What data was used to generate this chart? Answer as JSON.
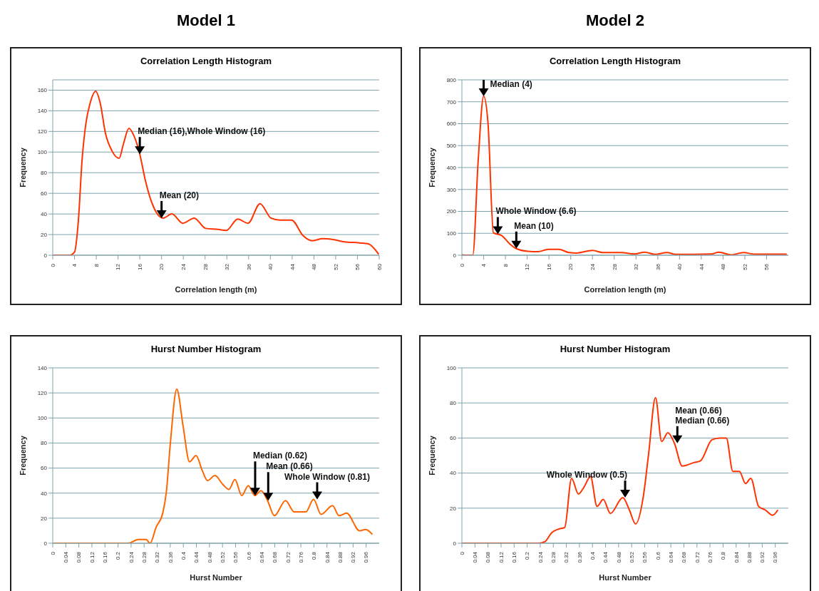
{
  "chart_data": [
    {
      "type": "line",
      "title": "Correlation Length Histogram",
      "xlabel": "Correlation length (m)",
      "ylabel": "Frequency",
      "xlim": [
        0,
        60
      ],
      "xticks": [
        0,
        4,
        8,
        12,
        16,
        20,
        24,
        28,
        32,
        36,
        40,
        44,
        48,
        52,
        56,
        60
      ],
      "ylim": [
        0,
        170
      ],
      "yticks": [
        0,
        20,
        40,
        60,
        80,
        100,
        120,
        140,
        160
      ],
      "grid": "y",
      "annotations": [
        "Model 1",
        {
          "text": "Median (16),Whole Window (16)",
          "x": 16,
          "y": 98
        },
        {
          "text": "Mean (20)",
          "x": 20,
          "y": 36
        }
      ],
      "x": [
        0,
        3.1,
        4,
        4.7,
        5.4,
        6.1,
        6.8,
        7.9,
        8.7,
        9.7,
        10.9,
        12.2,
        13,
        14,
        14.9,
        16,
        17,
        18.2,
        19.1,
        20.3,
        21.9,
        23.9,
        26,
        28.1,
        30.4,
        31.9,
        34,
        35.9,
        38.1,
        40.1,
        41.8,
        43.9,
        46,
        47.7,
        49.6,
        51.7,
        53.6,
        56.4,
        58,
        59.9
      ],
      "series": [
        {
          "color": "#ff3300",
          "values": [
            0,
            0,
            3,
            33,
            93,
            128,
            146,
            159,
            148,
            118,
            101,
            94,
            108,
            123,
            116,
            98,
            73,
            51,
            41,
            36,
            40,
            31,
            36,
            26,
            25,
            24,
            35,
            31,
            50,
            36,
            34,
            34,
            19,
            14,
            16,
            15,
            13,
            12,
            11,
            1
          ]
        }
      ]
    },
    {
      "type": "line",
      "title": "Correlation Length Histogram",
      "xlabel": "Correlation length (m)",
      "ylabel": "Frequency",
      "xlim": [
        0,
        60
      ],
      "xticks": [
        0,
        4,
        8,
        12,
        16,
        20,
        24,
        28,
        32,
        36,
        40,
        44,
        48,
        52,
        56
      ],
      "ylim": [
        0,
        800
      ],
      "yticks": [
        0,
        100,
        200,
        300,
        400,
        500,
        600,
        700,
        800
      ],
      "grid": "y",
      "annotations": [
        "Model 2",
        {
          "text": "Median (4)",
          "x": 4,
          "y": 725
        },
        {
          "text": "Whole Window (6.6)",
          "x": 6.6,
          "y": 96
        },
        {
          "text": "Mean (10)",
          "x": 10,
          "y": 30
        }
      ],
      "x": [
        0,
        1,
        2,
        3,
        4,
        4.8,
        5.8,
        7.3,
        8.7,
        10,
        12.1,
        14,
        15.9,
        17.8,
        19.7,
        21.1,
        24,
        25.9,
        29.3,
        31.7,
        33.6,
        35.5,
        37.7,
        39.3,
        46,
        47.2,
        49.4,
        51.8,
        53.7,
        59.7
      ],
      "series": [
        {
          "color": "#ff3300",
          "values": [
            2,
            0,
            0,
            434,
            725,
            602,
            102,
            90,
            54,
            30,
            18,
            16,
            27,
            27,
            12,
            10,
            22,
            12,
            12,
            6,
            14,
            4,
            12,
            4,
            6,
            14,
            2,
            12,
            5,
            5
          ]
        }
      ]
    },
    {
      "type": "line",
      "title": "Hurst Number Histogram",
      "xlabel": "Hurst Number",
      "ylabel": "Frequency",
      "xlim": [
        0,
        1
      ],
      "xticks": [
        0,
        0.04,
        0.08,
        0.12,
        0.16,
        0.2,
        0.24,
        0.28,
        0.32,
        0.36,
        0.4,
        0.44,
        0.48,
        0.52,
        0.56,
        0.6,
        0.64,
        0.68,
        0.72,
        0.76,
        0.8,
        0.84,
        0.88,
        0.92,
        0.96
      ],
      "ylim": [
        0,
        140
      ],
      "yticks": [
        0,
        20,
        40,
        60,
        80,
        100,
        120,
        140
      ],
      "grid": "y",
      "annotations": [
        {
          "text": "Median (0.62)",
          "x": 0.62,
          "y": 38
        },
        {
          "text": "Mean (0.66)",
          "x": 0.66,
          "y": 34
        },
        {
          "text": "Whole Window (0.81)",
          "x": 0.81,
          "y": 35
        }
      ],
      "x": [
        0,
        0.231,
        0.262,
        0.286,
        0.298,
        0.317,
        0.337,
        0.348,
        0.36,
        0.38,
        0.399,
        0.419,
        0.439,
        0.458,
        0.474,
        0.497,
        0.521,
        0.54,
        0.558,
        0.579,
        0.599,
        0.619,
        0.638,
        0.658,
        0.679,
        0.713,
        0.74,
        0.775,
        0.799,
        0.822,
        0.857,
        0.877,
        0.9,
        0.94,
        0.959,
        0.979
      ],
      "series": [
        {
          "color": "#ff6600",
          "values": [
            0,
            0,
            3,
            3,
            0,
            13,
            24,
            41,
            79,
            123,
            94,
            65,
            70,
            58,
            50,
            54,
            47,
            43,
            51,
            38,
            46,
            38,
            42,
            34,
            22,
            34,
            25,
            25,
            35,
            23,
            30,
            22,
            24,
            10,
            11,
            7
          ]
        }
      ]
    },
    {
      "type": "line",
      "title": "Hurst Number Histogram",
      "xlabel": "Hurst Number",
      "ylabel": "Frequency",
      "xlim": [
        0,
        1
      ],
      "xticks": [
        0,
        0.04,
        0.08,
        0.12,
        0.16,
        0.2,
        0.24,
        0.28,
        0.32,
        0.36,
        0.4,
        0.44,
        0.48,
        0.52,
        0.56,
        0.6,
        0.64,
        0.68,
        0.72,
        0.76,
        0.8,
        0.84,
        0.88,
        0.92,
        0.96
      ],
      "ylim": [
        0,
        100
      ],
      "yticks": [
        0,
        20,
        40,
        60,
        80,
        100
      ],
      "grid": "y",
      "annotations": [
        {
          "text": "Whole Window (0.5)",
          "x": 0.5,
          "y": 26
        },
        {
          "text": "Mean (0.66)\nMedian (0.66)",
          "x": 0.66,
          "y": 57
        }
      ],
      "x": [
        0,
        0.235,
        0.255,
        0.275,
        0.295,
        0.315,
        0.336,
        0.357,
        0.374,
        0.394,
        0.414,
        0.433,
        0.455,
        0.493,
        0.513,
        0.532,
        0.556,
        0.572,
        0.593,
        0.612,
        0.631,
        0.651,
        0.675,
        0.711,
        0.731,
        0.766,
        0.79,
        0.81,
        0.83,
        0.85,
        0.869,
        0.885,
        0.909,
        0.929,
        0.952,
        0.968
      ],
      "series": [
        {
          "color": "#ff3300",
          "values": [
            0,
            0,
            1,
            6,
            8,
            9,
            37,
            28,
            32,
            38,
            21,
            25,
            17,
            26,
            19,
            11,
            27,
            51,
            83,
            58,
            63,
            57,
            44,
            46,
            47,
            59,
            60,
            60,
            41,
            41,
            34,
            37,
            21,
            19,
            16,
            19
          ]
        }
      ]
    }
  ]
}
